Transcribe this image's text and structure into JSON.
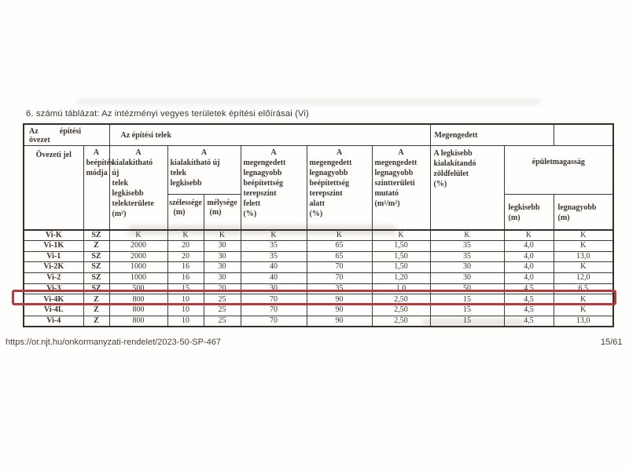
{
  "page": {
    "title": "6. számú táblázat: Az intézményi vegyes területek építési előírásai (Vi)",
    "footer_url": "https://or.njt.hu/onkormanyzati-rendelet/2023-50-SP-467",
    "page_indicator": "15/61"
  },
  "highlight": {
    "color": "#b53b3f",
    "highlighted_row": "Vi-4K"
  },
  "table": {
    "group_headers": {
      "zone_w1": "Az",
      "zone_w2": "építési",
      "zone_w3": "övezet",
      "plot": "Az építési telek",
      "allowed": "Megengedett"
    },
    "headers": {
      "ovezeti_jel": "Övezeti jel",
      "beepites": {
        "top": "A",
        "lines": "beépítés\nmódja"
      },
      "telekterulet": {
        "top": "A",
        "lines": "kialakítható\núj\ntelek\nlegkisebb\ntelekterülete\n(m²)"
      },
      "uj_telek": {
        "top": "A",
        "lines": "kialakítható új\ntelek\nlegkisebb"
      },
      "szelessege": {
        "word": "szélessége",
        "unit": "(m)"
      },
      "melysege": {
        "word": "mélysége",
        "unit": "(m)"
      },
      "felett": {
        "top": "A",
        "lines": "megengedett\nlegnagyobb\nbeépítettség\nterepszint\nfelett\n(%)"
      },
      "alatt": {
        "top": "A",
        "lines": "megengedett\nlegnagyobb\nbeépítettség\nterepszint\nalatt\n(%)"
      },
      "mutato": {
        "top": "A",
        "lines": "megengedett\nlegnagyobb\nszintterületi\nmutató\n(m²/m²)"
      },
      "zoldfelulet": {
        "lines": "A legkisebb\nkialakítandó\nzöldfelület\n(%)"
      },
      "epuletmagassag": "épületmagasság",
      "legkisebb_m": "legkisebb\n(m)",
      "legnagyobb_m": "legnagyobb\n(m)"
    },
    "rows": [
      {
        "jel": "Vi-K",
        "mod": "SZ",
        "cells": [
          "K",
          "K",
          "K",
          "K",
          "K",
          "K",
          "K",
          "K",
          "K"
        ],
        "highlight": false
      },
      {
        "jel": "Vi-1K",
        "mod": "Z",
        "cells": [
          "2000",
          "20",
          "30",
          "35",
          "65",
          "1,50",
          "35",
          "4,0",
          "K"
        ],
        "highlight": false
      },
      {
        "jel": "Vi-1",
        "mod": "SZ",
        "cells": [
          "2000",
          "20",
          "30",
          "35",
          "65",
          "1,50",
          "35",
          "4,0",
          "13,0"
        ],
        "highlight": false
      },
      {
        "jel": "Vi-2K",
        "mod": "SZ",
        "cells": [
          "1000",
          "16",
          "30",
          "40",
          "70",
          "1,50",
          "30",
          "4,0",
          "K"
        ],
        "highlight": false
      },
      {
        "jel": "Vi-2",
        "mod": "SZ",
        "cells": [
          "1000",
          "16",
          "30",
          "40",
          "70",
          "1,20",
          "30",
          "4,0",
          "12,0"
        ],
        "highlight": false
      },
      {
        "jel": "Vi-3",
        "mod": "SZ",
        "cells": [
          "500",
          "15",
          "20",
          "30",
          "35",
          "1,0",
          "50",
          "4,5",
          "6,5"
        ],
        "highlight": false
      },
      {
        "jel": "Vi-4K",
        "mod": "Z",
        "cells": [
          "800",
          "10",
          "25",
          "70",
          "90",
          "2,50",
          "15",
          "4,5",
          "K"
        ],
        "highlight": true
      },
      {
        "jel": "Vi-4L",
        "mod": "Z",
        "cells": [
          "800",
          "10",
          "25",
          "70",
          "90",
          "2,50",
          "15",
          "4,5",
          "K"
        ],
        "highlight": false
      },
      {
        "jel": "Vi-4",
        "mod": "Z",
        "cells": [
          "800",
          "10",
          "25",
          "70",
          "90",
          "2,50",
          "15",
          "4,5",
          "13,0"
        ],
        "highlight": false
      }
    ]
  }
}
